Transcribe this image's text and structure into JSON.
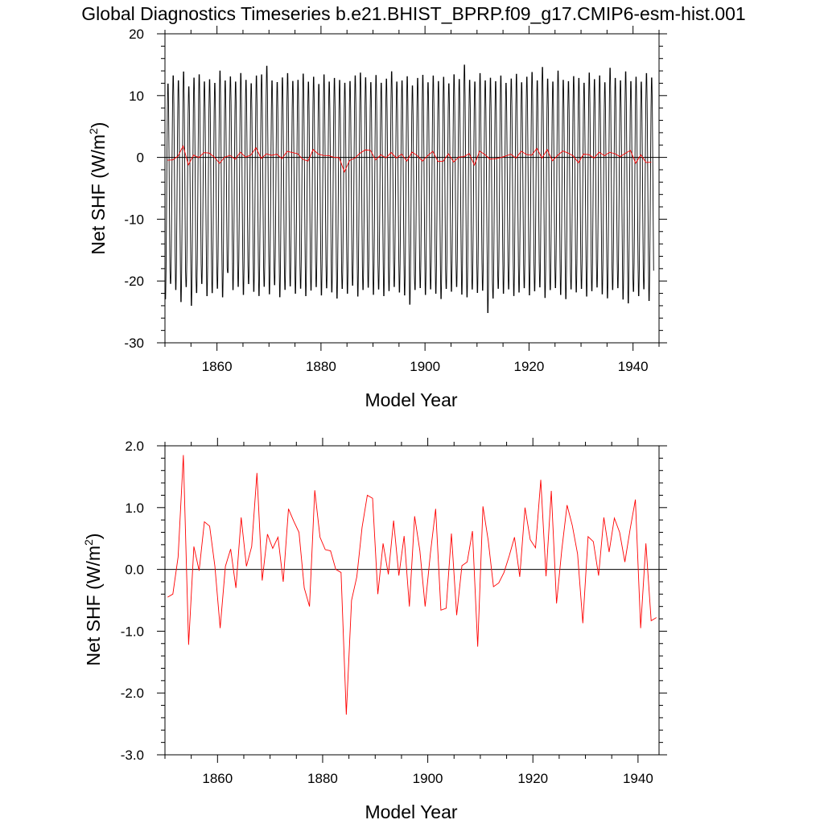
{
  "title": "Global Diagnostics Timeseries b.e21.BHIST_BPRP.f09_g17.CMIP6-esm-hist.001",
  "colors": {
    "monthly": "#000000",
    "annual": "#ff0000",
    "axis": "#000000"
  },
  "chart_data": [
    {
      "type": "line",
      "panel": "top",
      "xlabel": "Model Year",
      "ylabel_main": "Net SHF (W/m",
      "ylabel_sup": "2",
      "ylabel_close": ")",
      "xlim": [
        1850,
        1945
      ],
      "ylim": [
        -30,
        20
      ],
      "x_ticks": [
        1860,
        1880,
        1900,
        1920,
        1940
      ],
      "x_tick_labels": [
        "1860",
        "1880",
        "1900",
        "1920",
        "1940"
      ],
      "y_ticks": [
        20,
        10,
        0,
        -10,
        -20,
        -30
      ],
      "y_tick_labels": [
        "20",
        "10",
        "0",
        "-10",
        "-20",
        "-30"
      ],
      "zero_line": true,
      "series": [
        {
          "role": "monthly",
          "color": "#000000",
          "start_year": 1850,
          "seasonal_max": [
            12.5,
            13.8,
            13.0,
            14.5,
            12.0,
            13.5,
            14.0,
            12.8,
            13.2,
            12.6,
            14.6,
            13.0,
            13.6,
            12.8,
            14.2,
            13.1,
            12.5,
            13.8,
            14.0,
            15.4,
            13.0,
            12.7,
            13.5,
            14.2,
            12.9,
            13.1,
            14.1,
            12.8,
            13.6,
            12.4,
            14.0,
            12.8,
            13.4,
            13.1,
            12.6,
            12.9,
            13.8,
            14.3,
            13.5,
            12.7,
            13.9,
            12.6,
            13.3,
            14.5,
            12.8,
            13.0,
            13.7,
            12.2,
            13.4,
            13.9,
            12.7,
            13.8,
            12.9,
            13.6,
            12.5,
            14.0,
            13.2,
            15.6,
            13.1,
            12.8,
            14.2,
            13.0,
            13.5,
            12.9,
            13.8,
            12.6,
            13.3,
            14.1,
            12.7,
            13.6,
            14.4,
            13.0,
            15.2,
            13.3,
            12.8,
            14.6,
            13.1,
            12.9,
            13.7,
            13.4,
            12.6,
            14.3,
            13.2,
            13.8,
            12.7,
            15.1,
            13.4,
            13.0,
            14.5,
            12.9,
            13.6,
            12.8,
            14.2,
            13.5
          ],
          "seasonal_min": [
            -23.5,
            -21.0,
            -22.0,
            -24.0,
            -21.5,
            -24.6,
            -22.5,
            -21.0,
            -23.0,
            -22.5,
            -21.8,
            -23.2,
            -19.2,
            -22.0,
            -21.5,
            -22.8,
            -21.0,
            -22.3,
            -23.0,
            -21.5,
            -22.7,
            -21.2,
            -23.2,
            -22.0,
            -21.4,
            -22.6,
            -21.8,
            -23.0,
            -22.1,
            -21.5,
            -22.9,
            -21.7,
            -22.4,
            -23.4,
            -21.8,
            -22.6,
            -21.3,
            -23.1,
            -22.0,
            -21.6,
            -22.8,
            -21.9,
            -23.0,
            -22.2,
            -21.5,
            -22.4,
            -22.9,
            -24.4,
            -22.0,
            -21.7,
            -22.8,
            -21.9,
            -22.6,
            -23.5,
            -21.8,
            -22.3,
            -21.5,
            -22.8,
            -23.2,
            -21.9,
            -22.5,
            -22.1,
            -25.8,
            -23.4,
            -21.8,
            -22.6,
            -21.9,
            -23.0,
            -22.4,
            -21.7,
            -22.9,
            -22.2,
            -21.6,
            -23.3,
            -22.0,
            -21.7,
            -22.8,
            -23.5,
            -21.9,
            -22.4,
            -21.8,
            -23.1,
            -22.2,
            -21.6,
            -22.7,
            -23.4,
            -22.0,
            -21.7,
            -23.6,
            -24.2,
            -22.3,
            -23.0,
            -21.9,
            -23.8,
            -21.0
          ]
        },
        {
          "role": "annual",
          "color": "#ff0000",
          "ref": "annual_mean"
        }
      ]
    },
    {
      "type": "line",
      "panel": "bottom",
      "xlabel": "Model Year",
      "ylabel_main": "Net SHF (W/m",
      "ylabel_sup": "2",
      "ylabel_close": ")",
      "xlim": [
        1850,
        1944
      ],
      "ylim": [
        -3.0,
        2.0
      ],
      "x_ticks": [
        1860,
        1880,
        1900,
        1920,
        1940
      ],
      "x_tick_labels": [
        "1860",
        "1880",
        "1900",
        "1920",
        "1940"
      ],
      "y_ticks": [
        2.0,
        1.0,
        0.0,
        -1.0,
        -2.0,
        -3.0
      ],
      "y_tick_labels": [
        "2.0",
        "1.0",
        "0.0",
        "-1.0",
        "-2.0",
        "-3.0"
      ],
      "zero_line": true,
      "series": [
        {
          "role": "annual",
          "color": "#ff0000",
          "x": [
            1850.5,
            1851.5,
            1852.5,
            1853.5,
            1854.5,
            1855.5,
            1856.5,
            1857.5,
            1858.5,
            1859.5,
            1860.5,
            1861.5,
            1862.5,
            1863.5,
            1864.5,
            1865.5,
            1866.5,
            1867.5,
            1868.5,
            1869.5,
            1870.5,
            1871.5,
            1872.5,
            1873.5,
            1874.5,
            1875.5,
            1876.5,
            1877.5,
            1878.5,
            1879.5,
            1880.5,
            1881.5,
            1882.5,
            1883.5,
            1884.5,
            1885.5,
            1886.5,
            1887.5,
            1888.5,
            1889.5,
            1890.5,
            1891.5,
            1892.5,
            1893.5,
            1894.5,
            1895.5,
            1896.5,
            1897.5,
            1898.5,
            1899.5,
            1900.5,
            1901.5,
            1902.5,
            1903.5,
            1904.5,
            1905.5,
            1906.5,
            1907.5,
            1908.5,
            1909.5,
            1910.5,
            1911.5,
            1912.5,
            1913.5,
            1914.5,
            1915.5,
            1916.5,
            1917.5,
            1918.5,
            1919.5,
            1920.5,
            1921.5,
            1922.5,
            1923.5,
            1924.5,
            1925.5,
            1926.5,
            1927.5,
            1928.5,
            1929.5,
            1930.5,
            1931.5,
            1932.5,
            1933.5,
            1934.5,
            1935.5,
            1936.5,
            1937.5,
            1938.5,
            1939.5,
            1940.5,
            1941.5,
            1942.5,
            1943.5
          ],
          "values": [
            -0.45,
            -0.4,
            0.2,
            1.85,
            -1.22,
            0.37,
            -0.02,
            0.77,
            0.7,
            0.05,
            -0.95,
            0.05,
            0.33,
            -0.3,
            0.84,
            0.05,
            0.37,
            1.56,
            -0.18,
            0.57,
            0.34,
            0.52,
            -0.2,
            0.98,
            0.78,
            0.6,
            -0.3,
            -0.6,
            1.28,
            0.52,
            0.32,
            0.3,
            0.0,
            -0.05,
            -2.35,
            -0.5,
            -0.12,
            0.68,
            1.2,
            1.15,
            -0.4,
            0.42,
            -0.08,
            0.79,
            -0.1,
            0.54,
            -0.6,
            0.86,
            0.3,
            -0.6,
            0.26,
            0.98,
            -0.66,
            -0.63,
            0.58,
            -0.74,
            0.06,
            0.12,
            0.62,
            -1.25,
            1.02,
            0.47,
            -0.28,
            -0.22,
            -0.05,
            0.22,
            0.52,
            -0.12,
            1.0,
            0.48,
            0.35,
            1.45,
            -0.11,
            1.27,
            -0.55,
            0.32,
            1.04,
            0.71,
            0.25,
            -0.87,
            0.53,
            0.45,
            -0.1,
            0.84,
            0.28,
            0.83,
            0.6,
            0.12,
            0.65,
            1.13,
            -0.95,
            0.42,
            -0.83,
            -0.78
          ]
        }
      ]
    }
  ]
}
